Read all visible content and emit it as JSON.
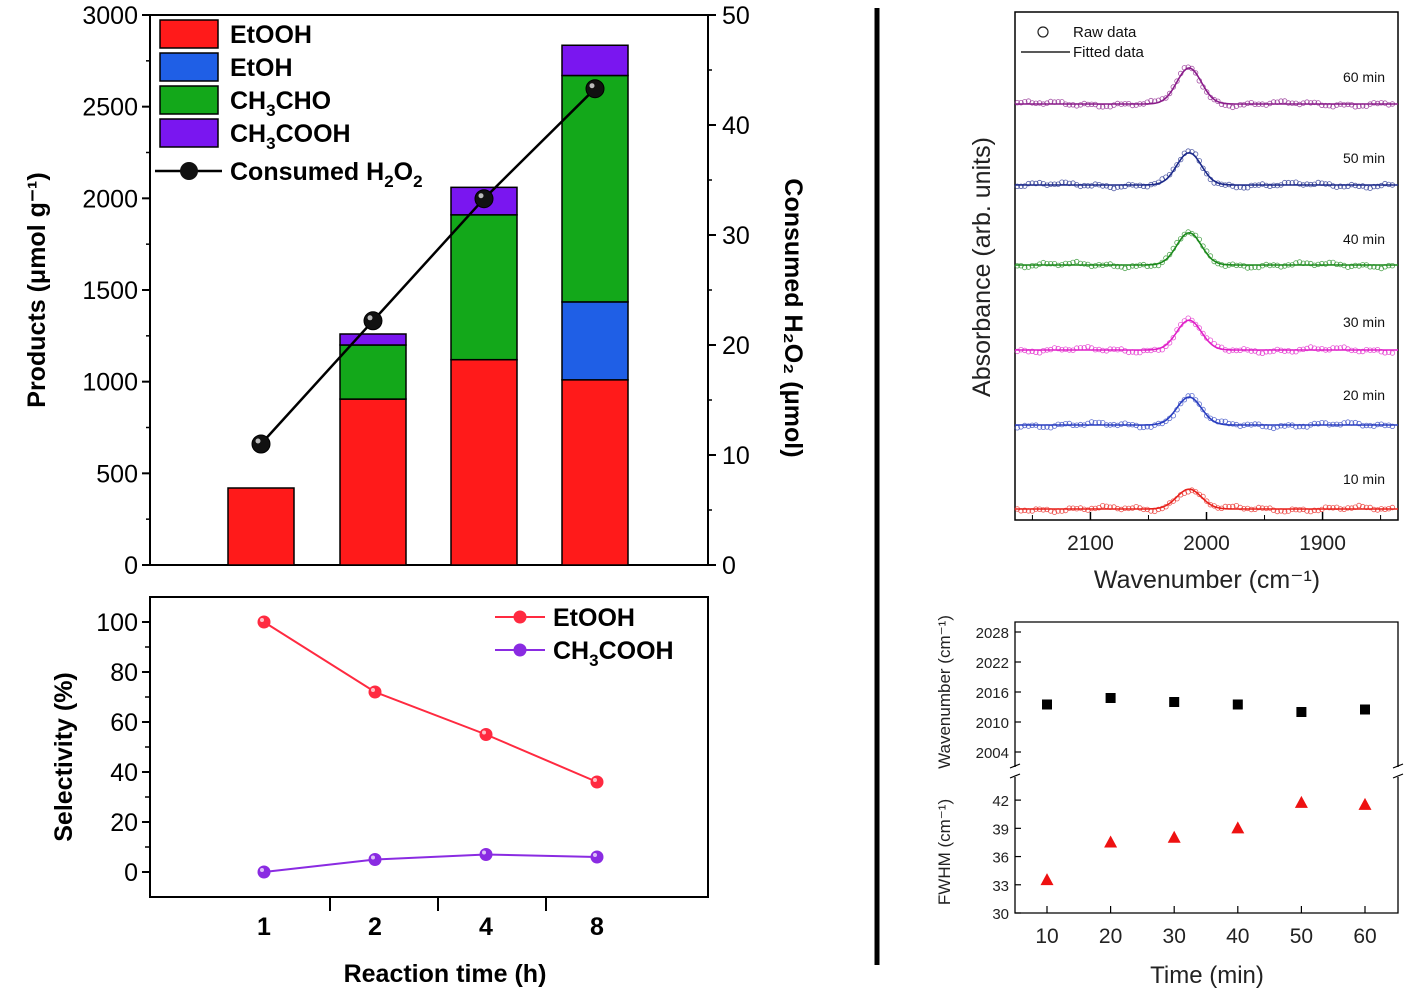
{
  "chart_data": [
    {
      "type": "bar",
      "title": "",
      "xlabel": "",
      "ylabel": "Products (μmol g⁻¹)",
      "y2label": "Consumed H₂O₂ (μmol)",
      "ylim": [
        0,
        3000
      ],
      "y2lim": [
        0,
        50
      ],
      "yticks": [
        "0",
        "500",
        "1000",
        "1500",
        "2000",
        "2500",
        "3000"
      ],
      "y2ticks": [
        "0",
        "10",
        "20",
        "30",
        "40",
        "50"
      ],
      "categories": [
        "1",
        "2",
        "4",
        "8"
      ],
      "series": [
        {
          "name": "EtOOH",
          "label_main": "EtOOH",
          "color": "#ff1a1a",
          "values": [
            420,
            905,
            1120,
            1010
          ]
        },
        {
          "name": "EtOH",
          "label_main": "EtOH",
          "color": "#1f5fe6",
          "values": [
            0,
            0,
            0,
            425
          ]
        },
        {
          "name": "CH3CHO",
          "label_main": "CH",
          "label_sub": "3",
          "label_tail": "CHO",
          "color": "#13a81a",
          "values": [
            0,
            295,
            790,
            1235
          ]
        },
        {
          "name": "CH3COOH",
          "label_main": "CH",
          "label_sub": "3",
          "label_tail": "COOH",
          "color": "#7a16f0",
          "values": [
            0,
            60,
            150,
            165
          ]
        }
      ],
      "line_series": {
        "name": "Consumed H2O2",
        "label_main": "Consumed H",
        "label_sub": "2",
        "label_tail": "O",
        "label_sub2": "2",
        "axis": "right",
        "values": [
          11,
          22.2,
          33.3,
          43.3
        ]
      }
    },
    {
      "type": "line",
      "xlabel": "Reaction time (h)",
      "ylabel": "Selectivity (%)",
      "ylim": [
        -10,
        110
      ],
      "yticks": [
        "0",
        "20",
        "40",
        "60",
        "80",
        "100"
      ],
      "categories": [
        "1",
        "2",
        "4",
        "8"
      ],
      "series": [
        {
          "name": "EtOOH",
          "label_main": "EtOOH",
          "color": "#ff2a40",
          "values": [
            100,
            72,
            55,
            36
          ]
        },
        {
          "name": "CH3COOH",
          "label_main": "CH",
          "label_sub": "3",
          "label_tail": "COOH",
          "color": "#8a2be2",
          "values": [
            0,
            5,
            7,
            6
          ]
        }
      ]
    },
    {
      "type": "line",
      "xlabel": "Wavenumber (cm⁻¹)",
      "ylabel": "Absorbance (arb. units)",
      "xlim": [
        2165,
        1835
      ],
      "xticks": [
        "2100",
        "2000",
        "1900"
      ],
      "legend": [
        "Raw data",
        "Fitted data"
      ],
      "peak_center": 2015,
      "series": [
        {
          "name": "10 min",
          "color": "#e8221c",
          "amp": 0.32
        },
        {
          "name": "20 min",
          "color": "#2a3fc0",
          "amp": 0.45
        },
        {
          "name": "30 min",
          "color": "#e020c8",
          "amp": 0.48
        },
        {
          "name": "40 min",
          "color": "#1c8a1c",
          "amp": 0.52
        },
        {
          "name": "50 min",
          "color": "#1c2a8a",
          "amp": 0.52
        },
        {
          "name": "60 min",
          "color": "#8a1c8a",
          "amp": 0.58
        }
      ]
    },
    {
      "type": "scatter",
      "xlabel": "Time (min)",
      "xticks": [
        "10",
        "20",
        "30",
        "40",
        "50",
        "60"
      ],
      "panels": [
        {
          "ylabel": "Wavenumber (cm⁻¹)",
          "yticks": [
            "2004",
            "2010",
            "2016",
            "2022",
            "2028"
          ],
          "ylim": [
            2000,
            2030
          ],
          "marker": "square",
          "color": "#000000",
          "x": [
            10,
            20,
            30,
            40,
            50,
            60
          ],
          "y": [
            2013.5,
            2014.8,
            2014,
            2013.5,
            2012,
            2012.5
          ]
        },
        {
          "ylabel": "FWHM (cm⁻¹)",
          "yticks": [
            "30",
            "33",
            "36",
            "39",
            "42"
          ],
          "ylim": [
            30,
            43.5
          ],
          "marker": "triangle",
          "color": "#ee1111",
          "x": [
            10,
            20,
            30,
            40,
            50,
            60
          ],
          "y": [
            33.5,
            37.5,
            38,
            39,
            41.7,
            41.5
          ]
        }
      ]
    }
  ]
}
